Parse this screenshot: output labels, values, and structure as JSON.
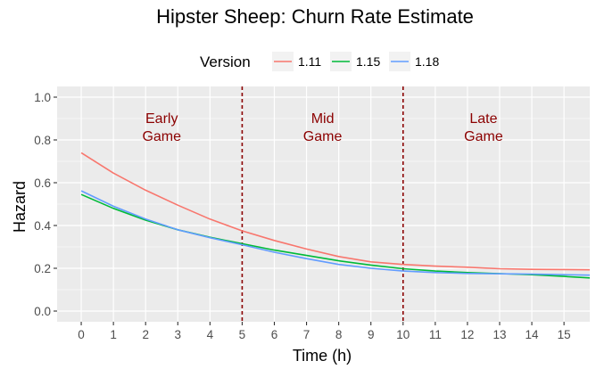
{
  "chart_data": {
    "type": "line",
    "title": "Hipster Sheep: Churn Rate Estimate",
    "xlabel": "Time (h)",
    "ylabel": "Hazard",
    "xlim": [
      -0.75,
      15.8
    ],
    "ylim": [
      -0.05,
      1.05
    ],
    "x_ticks": [
      0,
      1,
      2,
      3,
      4,
      5,
      6,
      7,
      8,
      9,
      10,
      11,
      12,
      13,
      14,
      15
    ],
    "y_ticks": [
      0.0,
      0.2,
      0.4,
      0.6,
      0.8,
      1.0
    ],
    "y_tick_labels": [
      "0.0",
      "0.2",
      "0.4",
      "0.6",
      "0.8",
      "1.0"
    ],
    "grid": true,
    "legend": {
      "title": "Version",
      "position": "top"
    },
    "series": [
      {
        "name": "1.11",
        "color": "#f8766d",
        "x": [
          0,
          1,
          2,
          3,
          4,
          5,
          6,
          7,
          8,
          9,
          10,
          11,
          12,
          13,
          14,
          15,
          15.8
        ],
        "y": [
          0.74,
          0.645,
          0.565,
          0.495,
          0.43,
          0.375,
          0.33,
          0.29,
          0.255,
          0.23,
          0.218,
          0.21,
          0.205,
          0.198,
          0.195,
          0.194,
          0.193
        ]
      },
      {
        "name": "1.15",
        "color": "#00ba38",
        "x": [
          0,
          1,
          2,
          3,
          4,
          5,
          6,
          7,
          8,
          9,
          10,
          11,
          12,
          13,
          14,
          15,
          15.8
        ],
        "y": [
          0.545,
          0.48,
          0.425,
          0.38,
          0.345,
          0.315,
          0.285,
          0.26,
          0.235,
          0.215,
          0.198,
          0.187,
          0.18,
          0.175,
          0.17,
          0.162,
          0.155
        ]
      },
      {
        "name": "1.18",
        "color": "#619cff",
        "x": [
          0,
          1,
          2,
          3,
          4,
          5,
          6,
          7,
          8,
          9,
          10,
          11,
          12,
          13,
          14,
          15,
          15.8
        ],
        "y": [
          0.562,
          0.49,
          0.43,
          0.38,
          0.343,
          0.31,
          0.275,
          0.245,
          0.218,
          0.2,
          0.187,
          0.18,
          0.176,
          0.174,
          0.173,
          0.17,
          0.168
        ]
      }
    ],
    "vlines": [
      {
        "x": 5,
        "color": "#8b0000",
        "style": "dashed"
      },
      {
        "x": 10,
        "color": "#8b0000",
        "style": "dashed"
      }
    ],
    "annotations": [
      {
        "lines": [
          "Early",
          "Game"
        ],
        "x": 2.5,
        "y": 0.88
      },
      {
        "lines": [
          "Mid",
          "Game"
        ],
        "x": 7.5,
        "y": 0.88
      },
      {
        "lines": [
          "Late",
          "Game"
        ],
        "x": 12.5,
        "y": 0.88
      }
    ]
  }
}
